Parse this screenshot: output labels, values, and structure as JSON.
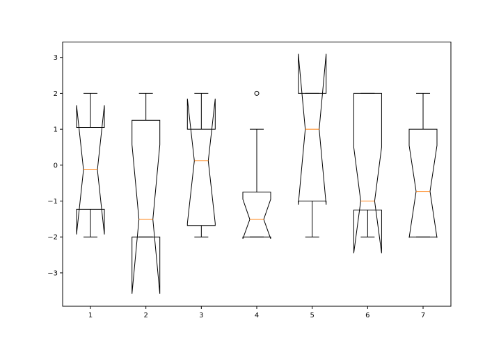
{
  "chart_data": {
    "type": "boxplot",
    "notched": true,
    "categories": [
      "1",
      "2",
      "3",
      "4",
      "5",
      "6",
      "7"
    ],
    "xticks": [
      "1",
      "2",
      "3",
      "4",
      "5",
      "6",
      "7"
    ],
    "yticks": [
      "−3",
      "−2",
      "−1",
      "0",
      "1",
      "2",
      "3"
    ],
    "ylim": [
      -3.93,
      3.43
    ],
    "grid": false,
    "boxes": [
      {
        "label": "1",
        "whislo": -2.0,
        "q1": -1.23,
        "med": -0.13,
        "q3": 1.05,
        "whishi": 2.0,
        "notch_lo": -1.93,
        "notch_hi": 1.67,
        "fliers": []
      },
      {
        "label": "2",
        "whislo": -2.0,
        "q1": -2.0,
        "med": -1.51,
        "q3": 1.25,
        "whishi": 2.0,
        "notch_lo": -3.58,
        "notch_hi": 0.57,
        "fliers": []
      },
      {
        "label": "3",
        "whislo": -2.0,
        "q1": -1.68,
        "med": 0.12,
        "q3": 1.0,
        "whishi": 2.0,
        "notch_lo": -1.62,
        "notch_hi": 1.85,
        "fliers": []
      },
      {
        "label": "4",
        "whislo": -2.0,
        "q1": -2.0,
        "med": -1.51,
        "q3": -0.75,
        "whishi": 1.0,
        "notch_lo": -2.05,
        "notch_hi": -0.95,
        "fliers": [
          2.0
        ]
      },
      {
        "label": "5",
        "whislo": -2.0,
        "q1": -1.0,
        "med": 1.0,
        "q3": 2.0,
        "whishi": 2.0,
        "notch_lo": -1.1,
        "notch_hi": 3.1,
        "fliers": []
      },
      {
        "label": "6",
        "whislo": -2.0,
        "q1": -1.25,
        "med": -1.0,
        "q3": 2.0,
        "whishi": 2.0,
        "notch_lo": -2.45,
        "notch_hi": 0.5,
        "fliers": []
      },
      {
        "label": "7",
        "whislo": -2.0,
        "q1": -2.0,
        "med": -0.73,
        "q3": 1.0,
        "whishi": 2.0,
        "notch_lo": -2.02,
        "notch_hi": 0.55,
        "fliers": []
      }
    ],
    "colors": {
      "box": "#000000",
      "median": "#ff7f0e",
      "axes": "#000000",
      "background": "#ffffff"
    }
  }
}
